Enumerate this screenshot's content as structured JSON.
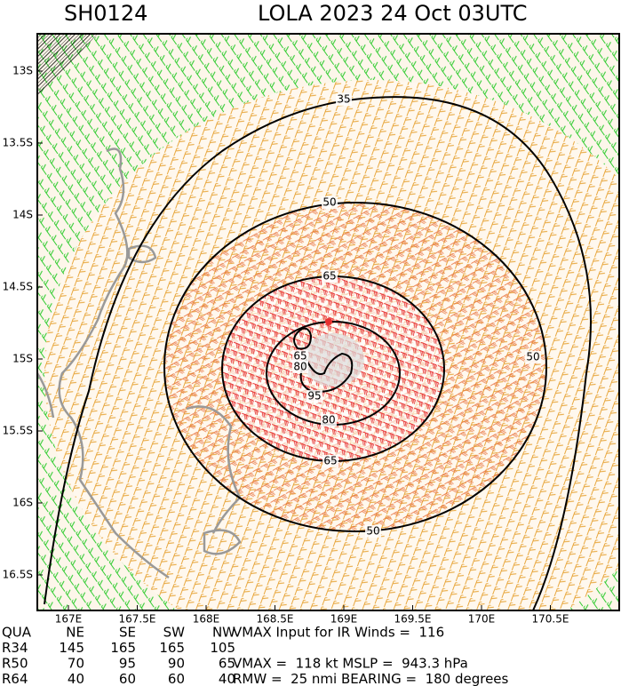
{
  "header": {
    "storm_id": "SH0124",
    "title": "LOLA 2023 24 Oct 03UTC"
  },
  "map": {
    "lat_labels": [
      "13S",
      "13.5S",
      "14S",
      "14.5S",
      "15S",
      "15.5S",
      "16S",
      "16.5S"
    ],
    "lon_labels": [
      "167E",
      "167.5E",
      "168E",
      "168.5E",
      "169E",
      "169.5E",
      "170E",
      "170.5E"
    ],
    "contour_labels": [
      "35",
      "50",
      "50",
      "50",
      "65",
      "65",
      "65",
      "80",
      "80",
      "95"
    ]
  },
  "table": {
    "rows": [
      [
        "QUA",
        "NE",
        "SE",
        "SW",
        "NW"
      ],
      [
        "R34",
        "145",
        "165",
        "165",
        "105"
      ],
      [
        "R50",
        "70",
        "95",
        "90",
        "65"
      ],
      [
        "R64",
        "40",
        "60",
        "60",
        "40"
      ]
    ]
  },
  "info": [
    "VMAX Input for IR Winds =  116",
    "VMAX =  118 kt MSLP =  943.3 hPa",
    "RMW =  25 nmi BEARING =  180 degrees"
  ]
}
